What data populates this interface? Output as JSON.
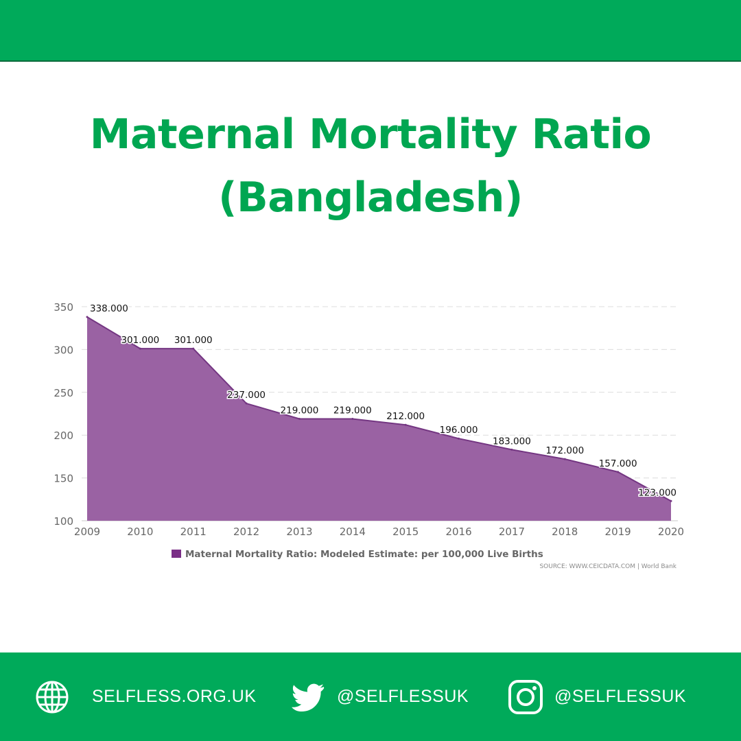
{
  "header": {
    "title_line1": "Maternal Mortality Ratio",
    "title_line2": "(Bangladesh)"
  },
  "colors": {
    "brand_green": "#00aa5a",
    "title_green": "#00a651",
    "area_fill": "#9a62a3",
    "area_line": "#743682",
    "legend_swatch": "#7a2e86"
  },
  "chart_data": {
    "type": "area",
    "x": [
      "2009",
      "2010",
      "2011",
      "2012",
      "2013",
      "2014",
      "2015",
      "2016",
      "2017",
      "2018",
      "2019",
      "2020"
    ],
    "series": [
      {
        "name": "Maternal Mortality Ratio: Modeled Estimate: per 100,000 Live Births",
        "values": [
          338,
          301,
          301,
          237,
          219,
          219,
          212,
          196,
          183,
          172,
          157,
          123
        ],
        "data_labels": [
          "338.000",
          "301.000",
          "301.000",
          "237.000",
          "219.000",
          "219.000",
          "212.000",
          "196.000",
          "183.000",
          "172.000",
          "157.000",
          "123.000"
        ]
      }
    ],
    "ylim": [
      100,
      350
    ],
    "yticks": [
      "100",
      "150",
      "200",
      "250",
      "300",
      "350"
    ],
    "grid": true,
    "legend_position": "bottom",
    "source": "SOURCE: WWW.CEICDATA.COM | World Bank"
  },
  "footer": {
    "website_icon": "globe-icon",
    "website": "SELFLESS.ORG.UK",
    "twitter_icon": "twitter-bird-icon",
    "twitter": "@SELFLESSUK",
    "instagram_icon": "instagram-icon",
    "instagram": "@SELFLESSUK"
  }
}
